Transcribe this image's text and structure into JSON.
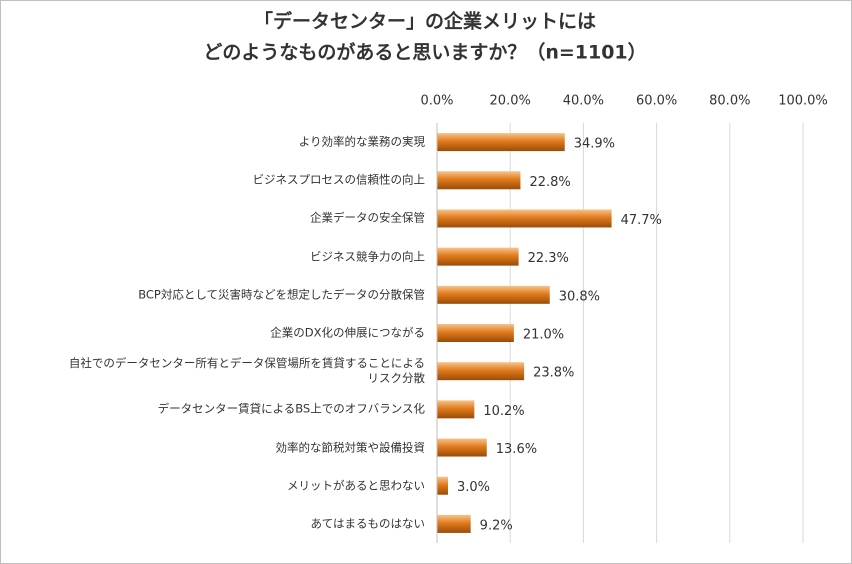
{
  "chart_data": {
    "type": "bar",
    "orientation": "horizontal",
    "title": [
      "「データセンター」の企業メリットには",
      "どのようなものがあると思いますか？（n=1101）"
    ],
    "categories": [
      "より効率的な業務の実現",
      "ビジネスプロセスの信頼性の向上",
      "企業データの安全保管",
      "ビジネス競争力の向上",
      "BCP対応として災害時などを想定したデータの分散保管",
      "企業のDX化の伸展につながる",
      "自社でのデータセンター所有とデータ保管場所を賃貸することによる\nリスク分散",
      "データセンター賃貸によるBS上でのオフバランス化",
      "効率的な節税対策や設備投資",
      "メリットがあると思わない",
      "あてはまるものはない"
    ],
    "values": [
      34.9,
      22.8,
      47.7,
      22.3,
      30.8,
      21.0,
      23.8,
      10.2,
      13.6,
      3.0,
      9.2
    ],
    "value_labels": [
      "34.9%",
      "22.8%",
      "47.7%",
      "22.3%",
      "30.8%",
      "21.0%",
      "23.8%",
      "10.2%",
      "13.6%",
      "3.0%",
      "9.2%"
    ],
    "color": "#e07b1c",
    "xlim": [
      0,
      100
    ],
    "xticks": [
      {
        "value": 0,
        "label": "0.0%"
      },
      {
        "value": 20,
        "label": "20.0%"
      },
      {
        "value": 40,
        "label": "40.0%"
      },
      {
        "value": 60,
        "label": "60.0%"
      },
      {
        "value": 80,
        "label": "80.0%"
      },
      {
        "value": 100,
        "label": "100.0%"
      }
    ],
    "grid": true
  }
}
